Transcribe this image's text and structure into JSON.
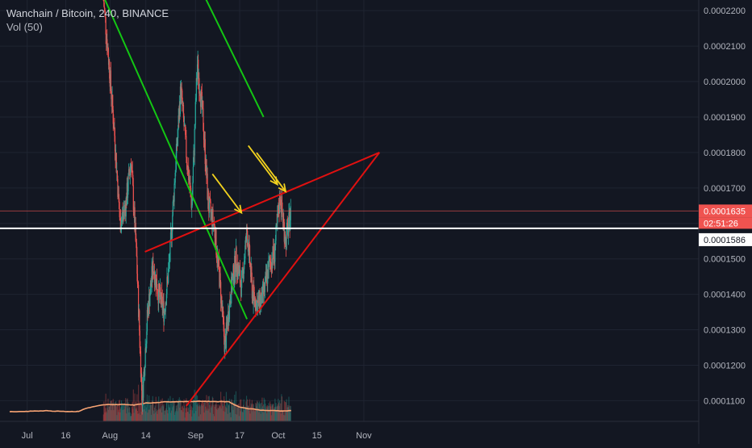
{
  "header": {
    "symbol_title": "Wanchain / Bitcoin, 240, BINANCE",
    "volume_indicator": "Vol (50)"
  },
  "colors": {
    "background": "#131722",
    "grid": "#1f2431",
    "axis_text": "#b2b5be",
    "candle_up": "#26a69a",
    "candle_down": "#ef5350",
    "trendline_green": "#13c613",
    "trendline_red": "#e01010",
    "arrow": "#f2d21e",
    "volume_ma": "#f7a373",
    "price_line": "#ffffff",
    "last_price_label": "#ef5350"
  },
  "price_labels": {
    "last_price": "0.0001635",
    "countdown": "02:51:26",
    "white_line_price": "0.0001586"
  },
  "chart_data": {
    "type": "candlestick",
    "title": "Wanchain / Bitcoin, 240, BINANCE",
    "x_tick_labels": [
      "Jul",
      "16",
      "Aug",
      "14",
      "Sep",
      "17",
      "Oct",
      "15",
      "Nov"
    ],
    "y_tick_labels": [
      "0.0001100",
      "0.0001200",
      "0.0001300",
      "0.0001400",
      "0.0001500",
      "0.0001600",
      "0.0001700",
      "0.0001800",
      "0.0001900",
      "0.0002000",
      "0.0002100",
      "0.0002200"
    ],
    "ylim": [
      0.0001085,
      0.000223
    ],
    "scale_note": "price in BTC",
    "grid": true,
    "close_path": [
      {
        "date": "2018-08-01",
        "price": 0.000223
      },
      {
        "date": "2018-08-03",
        "price": 0.000205
      },
      {
        "date": "2018-08-05",
        "price": 0.000185
      },
      {
        "date": "2018-08-07",
        "price": 0.00016
      },
      {
        "date": "2018-08-09",
        "price": 0.000165
      },
      {
        "date": "2018-08-11",
        "price": 0.000178
      },
      {
        "date": "2018-08-13",
        "price": 0.00015
      },
      {
        "date": "2018-08-15",
        "price": 0.00011
      },
      {
        "date": "2018-08-17",
        "price": 0.000135
      },
      {
        "date": "2018-08-19",
        "price": 0.000148
      },
      {
        "date": "2018-08-21",
        "price": 0.00014
      },
      {
        "date": "2018-08-23",
        "price": 0.000135
      },
      {
        "date": "2018-08-25",
        "price": 0.00015
      },
      {
        "date": "2018-08-27",
        "price": 0.000175
      },
      {
        "date": "2018-08-29",
        "price": 0.000198
      },
      {
        "date": "2018-08-31",
        "price": 0.00018
      },
      {
        "date": "2018-09-02",
        "price": 0.000165
      },
      {
        "date": "2018-09-04",
        "price": 0.000205
      },
      {
        "date": "2018-09-06",
        "price": 0.00019
      },
      {
        "date": "2018-09-08",
        "price": 0.000165
      },
      {
        "date": "2018-09-10",
        "price": 0.00016
      },
      {
        "date": "2018-09-12",
        "price": 0.000145
      },
      {
        "date": "2018-09-14",
        "price": 0.000125
      },
      {
        "date": "2018-09-16",
        "price": 0.00014
      },
      {
        "date": "2018-09-18",
        "price": 0.00015
      },
      {
        "date": "2018-09-20",
        "price": 0.000142
      },
      {
        "date": "2018-09-22",
        "price": 0.000158
      },
      {
        "date": "2018-09-24",
        "price": 0.00014
      },
      {
        "date": "2018-09-26",
        "price": 0.000137
      },
      {
        "date": "2018-09-28",
        "price": 0.00014
      },
      {
        "date": "2018-09-30",
        "price": 0.000148
      },
      {
        "date": "2018-10-02",
        "price": 0.000152
      },
      {
        "date": "2018-10-04",
        "price": 0.000168
      },
      {
        "date": "2018-10-06",
        "price": 0.000155
      },
      {
        "date": "2018-10-08",
        "price": 0.0001635
      }
    ],
    "trendlines": [
      {
        "name": "green-downtrend-1",
        "color": "green",
        "points": [
          {
            "date": "2018-08-01",
            "price": 0.000224
          },
          {
            "date": "2018-09-22",
            "price": 0.000133
          }
        ]
      },
      {
        "name": "green-downtrend-2",
        "color": "green",
        "points": [
          {
            "date": "2018-09-06",
            "price": 0.000225
          },
          {
            "date": "2018-09-28",
            "price": 0.00019
          }
        ]
      },
      {
        "name": "red-upper-resistance",
        "color": "red",
        "points": [
          {
            "date": "2018-08-16",
            "price": 0.000152
          },
          {
            "date": "2018-11-09",
            "price": 0.00018
          }
        ]
      },
      {
        "name": "red-lower-support",
        "color": "red",
        "points": [
          {
            "date": "2018-08-31",
            "price": 0.0001085
          },
          {
            "date": "2018-11-09",
            "price": 0.00018
          }
        ]
      }
    ],
    "horizontal_lines": [
      {
        "name": "last-price-line",
        "price": 0.0001635
      },
      {
        "name": "white-level-line",
        "price": 0.0001586
      }
    ],
    "arrows": [
      {
        "name": "arrow-1",
        "target": {
          "date": "2018-09-20",
          "price": 0.000163
        }
      },
      {
        "name": "arrow-2",
        "target": {
          "date": "2018-10-03",
          "price": 0.000171
        }
      },
      {
        "name": "arrow-3",
        "target": {
          "date": "2018-10-06",
          "price": 0.000169
        }
      }
    ]
  }
}
